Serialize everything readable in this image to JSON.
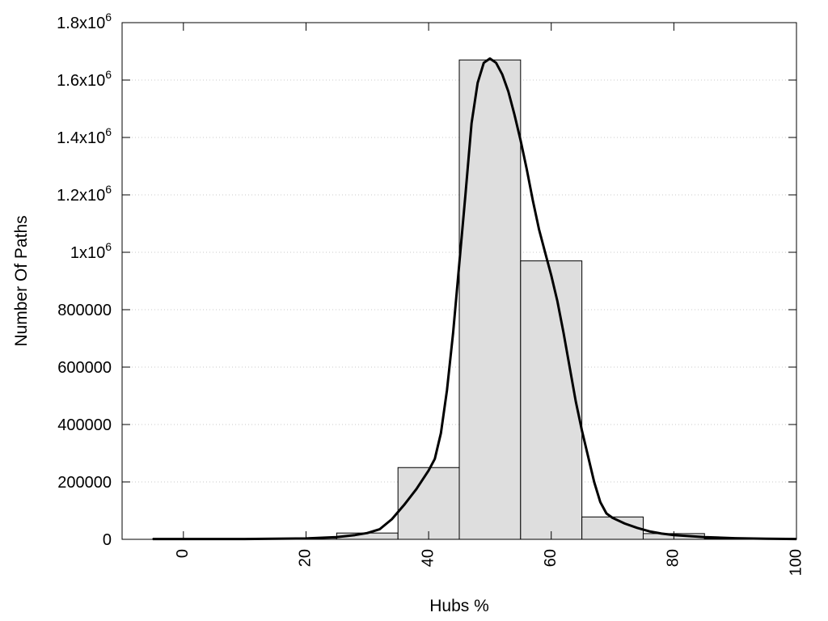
{
  "chart_data": {
    "type": "bar",
    "title": "",
    "xlabel": "Hubs %",
    "ylabel": "Number Of Paths",
    "xlim": [
      -10,
      100
    ],
    "ylim": [
      0,
      1800000
    ],
    "grid": "horizontal dotted",
    "x_ticks": [
      {
        "value": 0,
        "label": "0"
      },
      {
        "value": 20,
        "label": "20"
      },
      {
        "value": 40,
        "label": "40"
      },
      {
        "value": 60,
        "label": "60"
      },
      {
        "value": 80,
        "label": "80"
      },
      {
        "value": 100,
        "label": "100"
      }
    ],
    "y_ticks": [
      {
        "value": 0,
        "label": "0"
      },
      {
        "value": 200000,
        "label": "200000"
      },
      {
        "value": 400000,
        "label": "400000"
      },
      {
        "value": 600000,
        "label": "600000"
      },
      {
        "value": 800000,
        "label": "800000"
      },
      {
        "value": 1000000,
        "base": "1x10",
        "exp": "6"
      },
      {
        "value": 1200000,
        "base": "1.2x10",
        "exp": "6"
      },
      {
        "value": 1400000,
        "base": "1.4x10",
        "exp": "6"
      },
      {
        "value": 1600000,
        "base": "1.6x10",
        "exp": "6"
      },
      {
        "value": 1800000,
        "base": "1.8x10",
        "exp": "6"
      }
    ],
    "bars": [
      {
        "x": 0,
        "value": 2000
      },
      {
        "x": 10,
        "value": 1000
      },
      {
        "x": 20,
        "value": 4000
      },
      {
        "x": 30,
        "value": 22000
      },
      {
        "x": 40,
        "value": 250000
      },
      {
        "x": 50,
        "value": 1670000
      },
      {
        "x": 60,
        "value": 970000
      },
      {
        "x": 70,
        "value": 78000
      },
      {
        "x": 80,
        "value": 20000
      },
      {
        "x": 90,
        "value": 3000
      },
      {
        "x": 100,
        "value": 1000
      }
    ],
    "bar_width": 10,
    "curve": [
      [
        -5,
        1000
      ],
      [
        0,
        1000
      ],
      [
        10,
        1000
      ],
      [
        20,
        3000
      ],
      [
        25,
        8000
      ],
      [
        28,
        15000
      ],
      [
        30,
        22000
      ],
      [
        32,
        35000
      ],
      [
        34,
        70000
      ],
      [
        36,
        120000
      ],
      [
        38,
        175000
      ],
      [
        40,
        240000
      ],
      [
        41,
        280000
      ],
      [
        42,
        370000
      ],
      [
        43,
        520000
      ],
      [
        44,
        720000
      ],
      [
        45,
        960000
      ],
      [
        46,
        1200000
      ],
      [
        47,
        1450000
      ],
      [
        48,
        1590000
      ],
      [
        49,
        1660000
      ],
      [
        50,
        1675000
      ],
      [
        51,
        1660000
      ],
      [
        52,
        1620000
      ],
      [
        53,
        1560000
      ],
      [
        54,
        1480000
      ],
      [
        55,
        1390000
      ],
      [
        56,
        1290000
      ],
      [
        57,
        1180000
      ],
      [
        58,
        1080000
      ],
      [
        59,
        1000000
      ],
      [
        60,
        920000
      ],
      [
        61,
        830000
      ],
      [
        62,
        720000
      ],
      [
        63,
        600000
      ],
      [
        64,
        480000
      ],
      [
        65,
        380000
      ],
      [
        66,
        290000
      ],
      [
        67,
        200000
      ],
      [
        68,
        130000
      ],
      [
        69,
        90000
      ],
      [
        70,
        75000
      ],
      [
        72,
        55000
      ],
      [
        74,
        40000
      ],
      [
        76,
        28000
      ],
      [
        78,
        20000
      ],
      [
        80,
        15000
      ],
      [
        85,
        8000
      ],
      [
        90,
        4000
      ],
      [
        95,
        2000
      ],
      [
        100,
        1000
      ]
    ],
    "colors": {
      "bar_fill": "#dedede",
      "bar_stroke": "#000000",
      "curve": "#000000",
      "grid": "#c8c8c8"
    }
  }
}
